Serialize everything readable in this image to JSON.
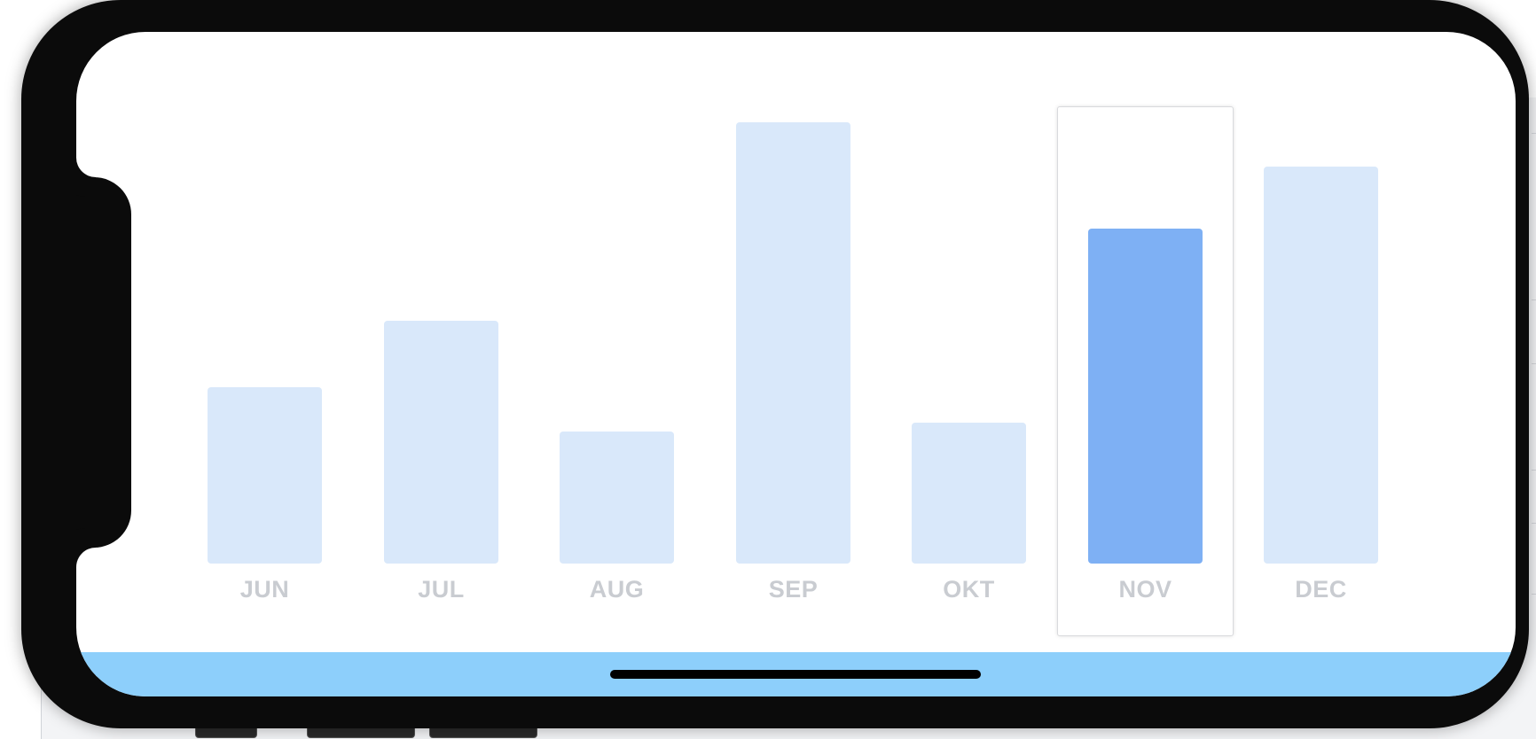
{
  "chart_data": {
    "type": "bar",
    "categories": [
      "JUN",
      "JUL",
      "AUG",
      "SEP",
      "OKT",
      "NOV",
      "DEC"
    ],
    "values": [
      40,
      55,
      30,
      100,
      32,
      76,
      90
    ],
    "ylim": [
      0,
      100
    ],
    "selected": "NOV",
    "colors": {
      "bar": "#d9e8fa",
      "selected_bar": "#7eb0f4",
      "label": "#c9ccd1",
      "bottom_bar": "#8dcffb"
    }
  }
}
